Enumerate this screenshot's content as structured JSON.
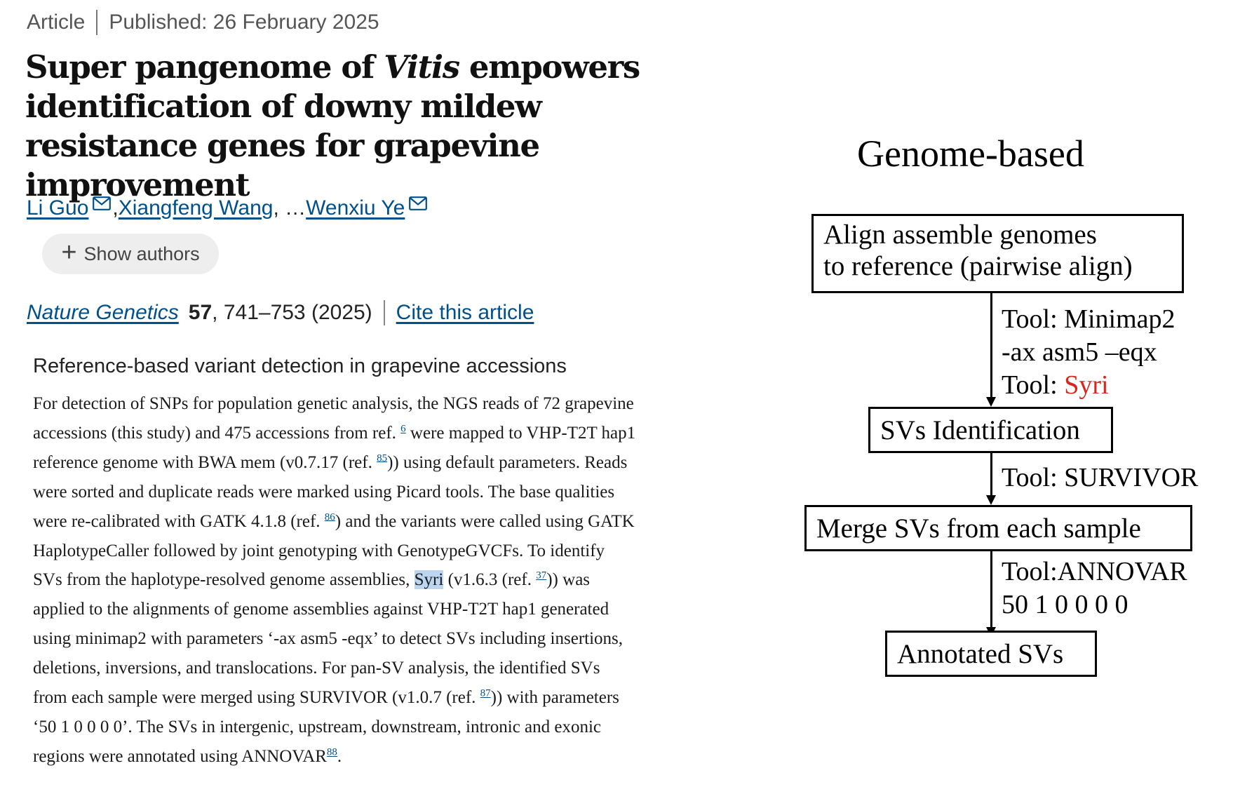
{
  "article": {
    "type": "Article",
    "published": "Published: 26 February 2025",
    "title_before": "Super pangenome of ",
    "title_italic": "Vitis",
    "title_after": " empowers identification of downy mildew resistance genes for grapevine improvement",
    "authors": {
      "author1": "Li Guo",
      "sep1": ", ",
      "author2": "Xiangfeng Wang",
      "ellipsis": ", … ",
      "author3": "Wenxiu Ye"
    },
    "show_authors_label": "Show authors",
    "citation": {
      "journal": "Nature Genetics",
      "volume": "57",
      "pages_year": ", 741–753 (2025)",
      "cite_label": "Cite this article"
    }
  },
  "methods": {
    "heading": "Reference-based variant detection in grapevine accessions",
    "seg1": "For detection of SNPs for population genetic analysis, the NGS reads of 72 grapevine accessions (this study) and 475 accessions from ref. ",
    "ref1": "6",
    "seg2": " were mapped to VHP-T2T hap1 reference genome with BWA mem (v0.7.17 (ref. ",
    "ref2": "85",
    "seg3": ")) using default parameters. Reads were sorted and duplicate reads were marked using Picard tools. The base qualities were re-calibrated with GATK 4.1.8 (ref. ",
    "ref3": "86",
    "seg4": ") and the variants were called using GATK HaplotypeCaller followed by joint genotyping with GenotypeGVCFs. To identify SVs from the haplotype-resolved genome assemblies, ",
    "highlight": "Syri",
    "seg5": " (v1.6.3 (ref. ",
    "ref4": "37",
    "seg6": ")) was applied to the alignments of genome assemblies against VHP-T2T hap1 generated using minimap2 with parameters ‘-ax asm5 -eqx’ to detect SVs including insertions, deletions, inversions, and translocations. For pan-SV analysis, the identified SVs from each sample were merged using SURVIVOR (v1.0.7 (ref. ",
    "ref5": "87",
    "seg7": ")) with parameters ‘50 1 0 0 0 0’. The SVs in intergenic, upstream, downstream, intronic and exonic regions were annotated using ANNOVAR",
    "ref6": "88",
    "seg8": "."
  },
  "diagram": {
    "title": "Genome-based",
    "step1_line1": "Align assemble genomes",
    "step1_line2": "to reference (pairwise align)",
    "tool1_line1": "Tool: Minimap2",
    "tool1_line2": "-ax asm5 –eqx",
    "tool1_line3_prefix": "Tool: ",
    "tool1_line3_name": "Syri",
    "step2": "SVs Identification",
    "tool2": "Tool: SURVIVOR",
    "step3": "Merge SVs from each sample",
    "tool3_line1": "Tool:ANNOVAR",
    "tool3_line2": "50 1 0 0 0 0",
    "step4": "Annotated SVs",
    "colors": {
      "highlight_text": "#d7261e",
      "link": "#00508c",
      "selection": "#bcd6f2"
    }
  }
}
